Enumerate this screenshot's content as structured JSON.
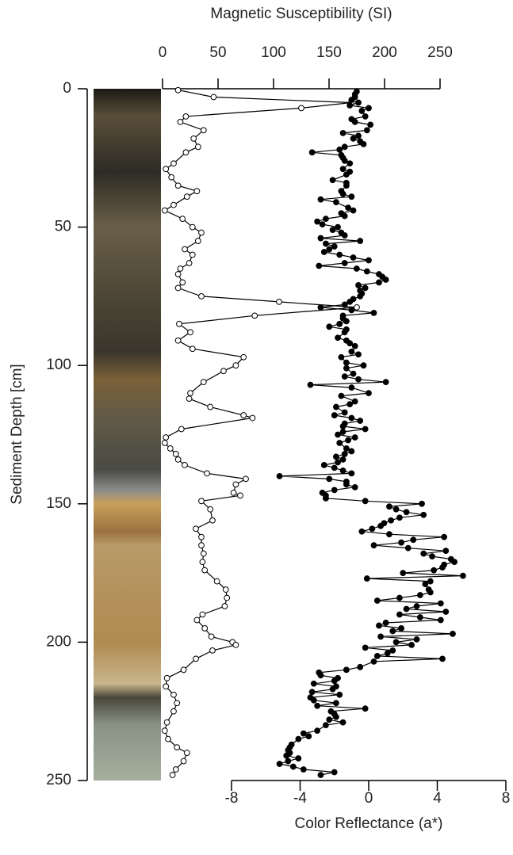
{
  "chart_data": {
    "type": "line",
    "xlabel": "Magnetic Susceptibility (SI)",
    "x2label": "Color Reflectance (a*)",
    "ylabel": "Sediment Depth [cm]",
    "xlim": [
      0,
      250
    ],
    "xticks": [
      0,
      50,
      100,
      150,
      200,
      250
    ],
    "x2lim": [
      -8,
      8
    ],
    "x2ticks": [
      -8,
      -4,
      0,
      4,
      8
    ],
    "ylim": [
      0,
      250
    ],
    "yticks": [
      0,
      50,
      100,
      150,
      200,
      250
    ],
    "y_inverted": true,
    "series": [
      {
        "axis": "x",
        "marker": "open",
        "color": "#000000",
        "depth": [
          0.5,
          3,
          5,
          7,
          10,
          12,
          15,
          18,
          21,
          23,
          27,
          29,
          32,
          35,
          37,
          39,
          42,
          44,
          47,
          50,
          52,
          55,
          58,
          60,
          63,
          65,
          67,
          70,
          72,
          75,
          77,
          79,
          82,
          85,
          88,
          91,
          94,
          97,
          100,
          102,
          106,
          110,
          112,
          115,
          118,
          119,
          123,
          126,
          128,
          130,
          132,
          134,
          136,
          139,
          141,
          143,
          146,
          147,
          149,
          152,
          156,
          159,
          162,
          165,
          168,
          171,
          174,
          178,
          181,
          184,
          187,
          190,
          192,
          195,
          198,
          200,
          201,
          203,
          206,
          210,
          213,
          216,
          219,
          222,
          225,
          229,
          232,
          235,
          238,
          240,
          243,
          246,
          248
        ],
        "values": [
          14,
          46,
          170,
          125,
          21,
          16,
          37,
          28,
          32,
          21,
          10,
          3,
          8,
          14,
          31,
          22,
          10,
          2,
          18,
          27,
          35,
          32,
          20,
          27,
          24,
          16,
          14,
          18,
          14,
          35,
          105,
          175,
          83,
          15,
          25,
          14,
          27,
          73,
          66,
          55,
          37,
          25,
          24,
          43,
          73,
          81,
          17,
          3,
          2,
          7,
          12,
          14,
          20,
          40,
          75,
          66,
          64,
          70,
          35,
          43,
          45,
          30,
          35,
          35,
          37,
          36,
          38,
          49,
          57,
          58,
          56,
          36,
          31,
          38,
          44,
          63,
          66,
          45,
          30,
          19,
          4,
          3,
          10,
          13,
          10,
          4,
          2,
          5,
          13,
          22,
          19,
          12,
          9
        ]
      },
      {
        "axis": "x2",
        "marker": "filled",
        "color": "#000000",
        "depth": [
          1,
          2,
          3,
          4,
          5,
          6,
          7,
          8,
          10,
          11,
          12,
          13,
          15,
          16,
          17,
          18,
          19,
          20,
          21,
          22,
          23,
          24,
          25,
          26,
          27,
          29,
          30,
          31,
          33,
          34,
          35,
          37,
          38,
          39,
          40,
          41,
          43,
          44,
          45,
          46,
          47,
          48,
          49,
          50,
          51,
          52,
          53,
          54,
          55,
          56,
          57,
          58,
          59,
          60,
          61,
          62,
          63,
          64,
          65,
          66,
          67,
          68,
          69,
          70,
          71,
          72,
          73,
          74,
          75,
          76,
          77,
          78,
          79,
          80,
          81,
          82,
          83,
          84,
          85,
          86,
          87,
          88,
          90,
          91,
          92,
          93,
          95,
          96,
          97,
          99,
          100,
          101,
          103,
          104,
          105,
          106,
          107,
          108,
          110,
          111,
          113,
          114,
          115,
          117,
          118,
          119,
          120,
          121,
          122,
          123,
          124,
          125,
          126,
          127,
          128,
          130,
          131,
          132,
          133,
          134,
          135,
          136,
          137,
          138,
          139,
          140,
          141,
          142,
          143,
          144,
          145,
          146,
          147,
          148,
          149,
          150,
          151,
          152,
          153,
          154,
          155,
          156,
          157,
          158,
          159,
          160,
          161,
          162,
          163,
          164,
          165,
          166,
          167,
          168,
          169,
          170,
          171,
          172,
          173,
          174,
          175,
          176,
          177,
          178,
          179,
          181,
          182,
          183,
          184,
          185,
          186,
          187,
          188,
          189,
          190,
          191,
          192,
          193,
          194,
          195,
          196,
          197,
          198,
          199,
          200,
          201,
          202,
          203,
          204,
          205,
          206,
          207,
          209,
          210,
          211,
          212,
          213,
          214,
          215,
          216,
          217,
          218,
          219,
          220,
          221,
          222,
          223,
          224,
          225,
          226,
          227,
          228,
          229,
          230,
          232,
          233,
          234,
          235,
          237,
          238,
          239,
          240,
          241,
          242,
          243,
          244,
          245,
          246,
          247,
          248
        ],
        "values": [
          -0.7,
          -0.8,
          -0.8,
          -1.0,
          -0.6,
          -1.1,
          0.0,
          -0.4,
          -0.2,
          -1.0,
          -0.8,
          0.1,
          -0.1,
          -1.5,
          -0.6,
          -0.9,
          -0.5,
          -0.3,
          -1.4,
          -1.7,
          -3.3,
          -1.6,
          -1.5,
          -1.4,
          -1.1,
          -1.5,
          -1.1,
          -1.3,
          -2.1,
          -1.3,
          -1.3,
          -1.6,
          -1.5,
          -1.0,
          -2.8,
          -1.9,
          -1.2,
          -0.9,
          -1.6,
          -1.4,
          -2.5,
          -3.0,
          -2.7,
          -1.8,
          -2.1,
          -1.6,
          -1.4,
          -2.8,
          -0.5,
          -2.5,
          -2.0,
          -2.3,
          -2.6,
          -1.7,
          -0.9,
          0.0,
          -1.4,
          -2.9,
          -0.7,
          -0.1,
          0.6,
          0.8,
          1.0,
          0.6,
          -0.6,
          -0.2,
          -0.5,
          -0.4,
          -0.5,
          -0.9,
          -1.1,
          -1.4,
          -2.8,
          -1.0,
          0.3,
          -1.5,
          -1.5,
          -1.3,
          -1.7,
          -2.3,
          -1.3,
          -1.4,
          -1.8,
          -1.3,
          -1.1,
          -0.8,
          -1.0,
          -0.6,
          -1.6,
          -1.3,
          -0.3,
          -1.3,
          -0.9,
          -1.4,
          -0.6,
          1.0,
          -3.4,
          -1.0,
          0.0,
          -1.6,
          -0.8,
          -1.1,
          -1.9,
          -1.4,
          -2.0,
          -1.0,
          -0.5,
          -1.4,
          -1.5,
          -0.2,
          -1.5,
          -1.8,
          -0.8,
          -1.2,
          -1.7,
          -1.3,
          -1.0,
          -1.4,
          -1.9,
          -1.5,
          -1.8,
          -2.6,
          -2.0,
          -1.5,
          -1.0,
          -5.2,
          -2.3,
          -1.3,
          -1.3,
          -0.8,
          -2.0,
          -2.7,
          -2.5,
          -2.5,
          -0.2,
          3.1,
          1.2,
          1.6,
          2.2,
          3.2,
          1.8,
          1.3,
          0.9,
          0.7,
          0.2,
          -0.4,
          1.2,
          4.4,
          2.6,
          1.9,
          0.3,
          2.3,
          4.5,
          3.2,
          3.7,
          4.8,
          5.0,
          4.4,
          4.3,
          3.8,
          2.0,
          5.5,
          -0.1,
          3.6,
          3.3,
          3.5,
          3.6,
          3.0,
          1.8,
          0.5,
          4.2,
          2.8,
          2.2,
          4.5,
          1.8,
          3.0,
          4.2,
          1.0,
          0.6,
          1.9,
          1.4,
          4.9,
          0.7,
          2.8,
          1.6,
          2.5,
          -0.2,
          1.4,
          1.1,
          0.5,
          4.3,
          0.3,
          -0.5,
          -1.3,
          -2.9,
          -2.8,
          -1.8,
          -2.0,
          -3.2,
          -1.9,
          -2.1,
          -3.3,
          -1.7,
          -3.4,
          -3.2,
          -1.9,
          -3.0,
          -0.2,
          -2.2,
          -2.0,
          -1.9,
          -2.3,
          -1.5,
          -2.5,
          -3.0,
          -3.8,
          -3.5,
          -4.1,
          -4.5,
          -4.6,
          -4.7,
          -4.6,
          -4.8,
          -4.1,
          -4.7,
          -5.2,
          -4.4,
          -3.8,
          -2.0,
          -2.8
        ]
      }
    ]
  }
}
